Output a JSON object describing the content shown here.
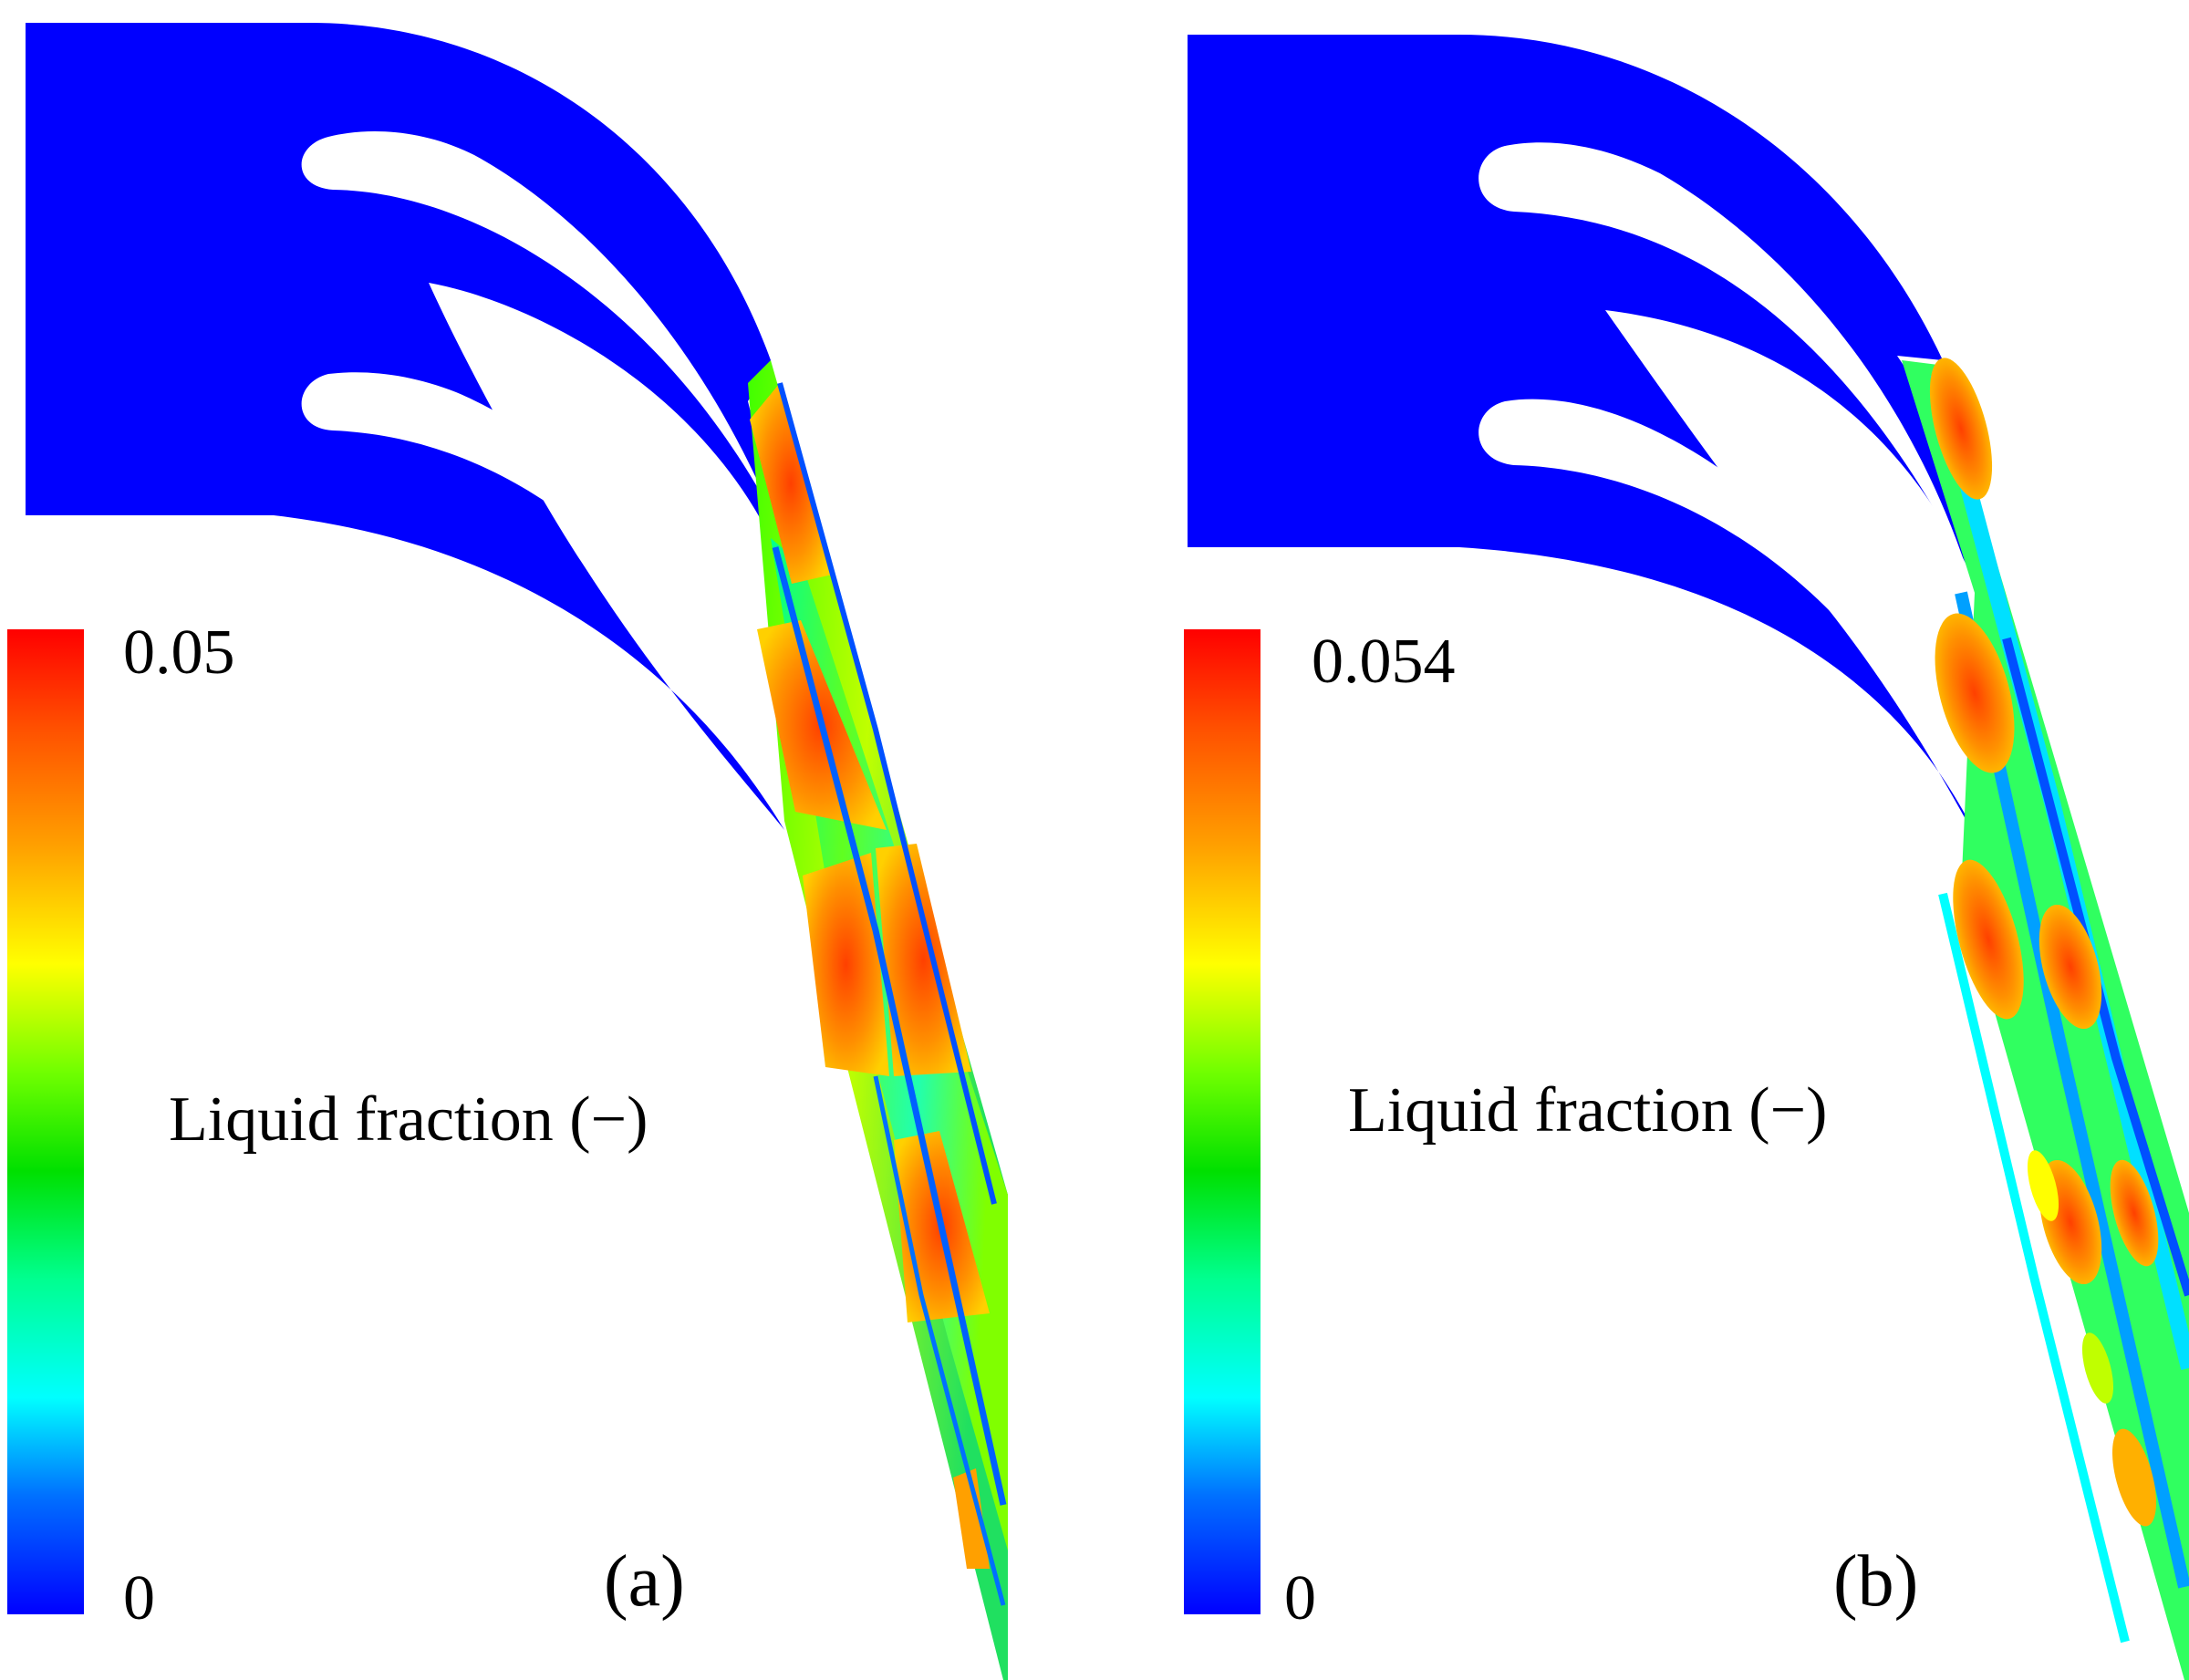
{
  "colormap": {
    "stops": [
      "#0000ff",
      "#0080ff",
      "#00ffff",
      "#00ff80",
      "#00e000",
      "#80ff00",
      "#ffff00",
      "#ffa000",
      "#ff5000",
      "#ff0000"
    ],
    "background_field": "#0000ff"
  },
  "panels": [
    {
      "label": "(a)",
      "colorbar": {
        "max_label": "0.05",
        "min_label": "0",
        "title": "Liquid fraction (−)"
      }
    },
    {
      "label": "(b)",
      "colorbar": {
        "max_label": "0.054",
        "min_label": "0",
        "title": "Liquid fraction (−)"
      }
    }
  ]
}
